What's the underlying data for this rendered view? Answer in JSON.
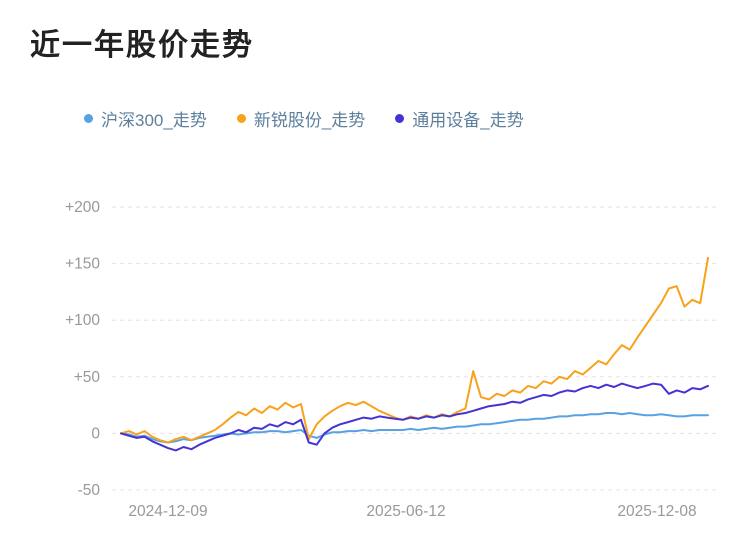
{
  "title": "近一年股价走势",
  "legend": [
    {
      "label": "沪深300_走势",
      "color": "#58A2E3"
    },
    {
      "label": "新锐股份_走势",
      "color": "#F9A11B"
    },
    {
      "label": "通用设备_走势",
      "color": "#4533D4"
    }
  ],
  "chart_data": {
    "type": "line",
    "title": "近一年股价走势",
    "x_tick_labels": [
      "2024-12-09",
      "2025-06-12",
      "2025-12-08"
    ],
    "y_ticks": [
      {
        "value": 200,
        "label": "+200"
      },
      {
        "value": 150,
        "label": "+150"
      },
      {
        "value": 100,
        "label": "+100"
      },
      {
        "value": 50,
        "label": "+50"
      },
      {
        "value": 0,
        "label": "0"
      },
      {
        "value": -50,
        "label": "-50"
      }
    ],
    "ylim": [
      -50,
      200
    ],
    "grid": "dashed-horizontal",
    "legend_position": "top",
    "axis_label_color": "#999999",
    "grid_color": "#e3e3e3",
    "series": [
      {
        "name": "沪深300_走势",
        "color": "#58A2E3",
        "values": [
          0,
          -1,
          -3,
          -2,
          -5,
          -7,
          -8,
          -7,
          -5,
          -6,
          -4,
          -3,
          -2,
          -1,
          0,
          -1,
          0,
          1,
          1,
          2,
          2,
          1,
          2,
          3,
          -2,
          -4,
          -1,
          1,
          1,
          2,
          2,
          3,
          2,
          3,
          3,
          3,
          3,
          4,
          3,
          4,
          5,
          4,
          5,
          6,
          6,
          7,
          8,
          8,
          9,
          10,
          11,
          12,
          12,
          13,
          13,
          14,
          15,
          15,
          16,
          16,
          17,
          17,
          18,
          18,
          17,
          18,
          17,
          16,
          16,
          17,
          16,
          15,
          15,
          16,
          16,
          16
        ]
      },
      {
        "name": "新锐股份_走势",
        "color": "#F9A11B",
        "values": [
          0,
          2,
          -1,
          2,
          -3,
          -6,
          -8,
          -5,
          -3,
          -6,
          -3,
          0,
          3,
          8,
          14,
          19,
          16,
          22,
          18,
          24,
          21,
          27,
          23,
          26,
          -5,
          8,
          15,
          20,
          24,
          27,
          25,
          28,
          24,
          20,
          17,
          14,
          12,
          15,
          13,
          16,
          14,
          17,
          15,
          19,
          22,
          55,
          32,
          30,
          35,
          33,
          38,
          36,
          42,
          40,
          46,
          44,
          50,
          48,
          55,
          52,
          58,
          64,
          61,
          70,
          78,
          74,
          85,
          95,
          105,
          115,
          128,
          130,
          112,
          118,
          115,
          155
        ]
      },
      {
        "name": "通用设备_走势",
        "color": "#4533D4",
        "values": [
          0,
          -2,
          -4,
          -3,
          -7,
          -10,
          -13,
          -15,
          -12,
          -14,
          -10,
          -7,
          -4,
          -2,
          0,
          3,
          1,
          5,
          4,
          8,
          6,
          10,
          8,
          12,
          -8,
          -10,
          0,
          5,
          8,
          10,
          12,
          14,
          13,
          15,
          14,
          13,
          12,
          14,
          13,
          15,
          14,
          16,
          15,
          17,
          18,
          20,
          22,
          24,
          25,
          26,
          28,
          27,
          30,
          32,
          34,
          33,
          36,
          38,
          37,
          40,
          42,
          40,
          43,
          41,
          44,
          42,
          40,
          42,
          44,
          43,
          35,
          38,
          36,
          40,
          39,
          42
        ]
      }
    ]
  }
}
